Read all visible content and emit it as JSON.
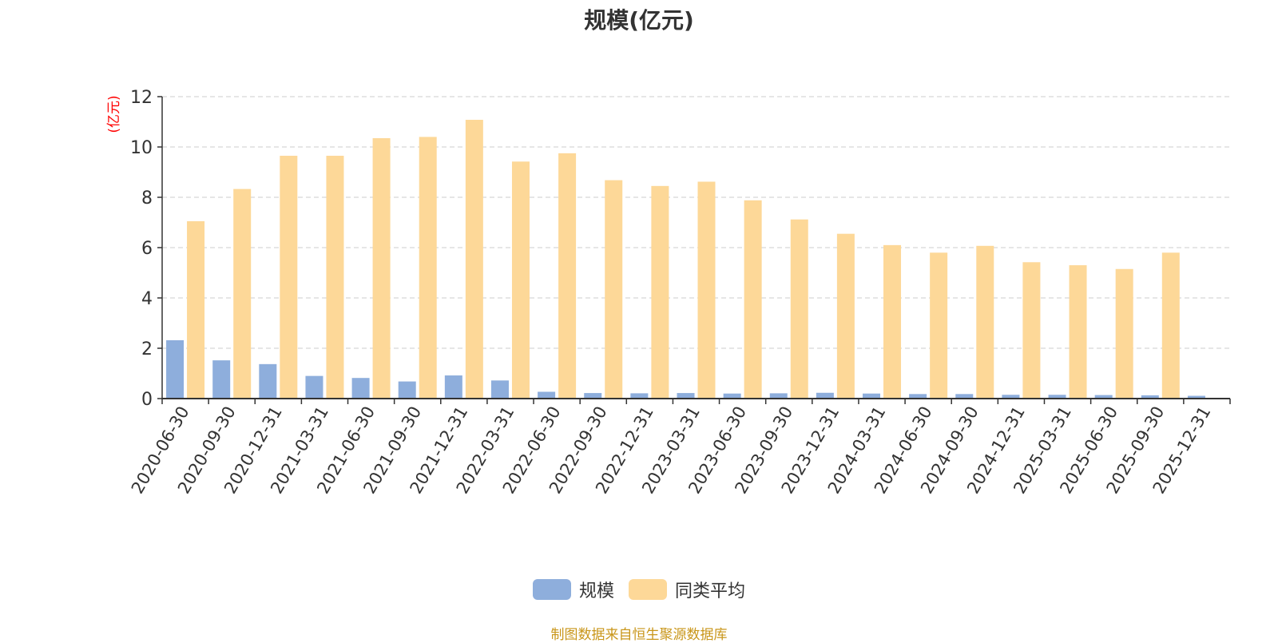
{
  "chart_data": {
    "type": "bar",
    "title": "规模(亿元)",
    "ylabel": "(亿元)",
    "ylim": [
      0,
      12
    ],
    "yticks": [
      0,
      2,
      4,
      6,
      8,
      10,
      12
    ],
    "grid": true,
    "legend_position": "bottom",
    "categories": [
      "2020-06-30",
      "2020-09-30",
      "2020-12-31",
      "2021-03-31",
      "2021-06-30",
      "2021-09-30",
      "2021-12-31",
      "2022-03-31",
      "2022-06-30",
      "2022-09-30",
      "2022-12-31",
      "2023-03-31",
      "2023-06-30",
      "2023-09-30",
      "2023-12-31",
      "2024-03-31",
      "2024-06-30",
      "2024-09-30",
      "2024-12-31",
      "2025-03-31",
      "2025-06-30",
      "2025-09-30",
      "2025-12-31"
    ],
    "series": [
      {
        "name": "规模",
        "color": "#8eaedc",
        "values": [
          2.32,
          1.52,
          1.37,
          0.9,
          0.82,
          0.68,
          0.92,
          0.72,
          0.27,
          0.22,
          0.21,
          0.22,
          0.2,
          0.21,
          0.23,
          0.2,
          0.18,
          0.18,
          0.15,
          0.15,
          0.14,
          0.13,
          0.11
        ]
      },
      {
        "name": "同类平均",
        "color": "#fdd898",
        "values": [
          7.05,
          8.33,
          9.65,
          9.65,
          10.35,
          10.4,
          11.08,
          9.42,
          9.75,
          8.68,
          8.45,
          8.62,
          7.88,
          7.12,
          6.55,
          6.1,
          5.8,
          6.07,
          5.42,
          5.3,
          5.15,
          5.8,
          null
        ]
      }
    ]
  },
  "source_note": "制图数据来自恒生聚源数据库",
  "colors": {
    "axis": "#333333",
    "grid": "#cccccc",
    "ylabel": "#ff0000"
  }
}
